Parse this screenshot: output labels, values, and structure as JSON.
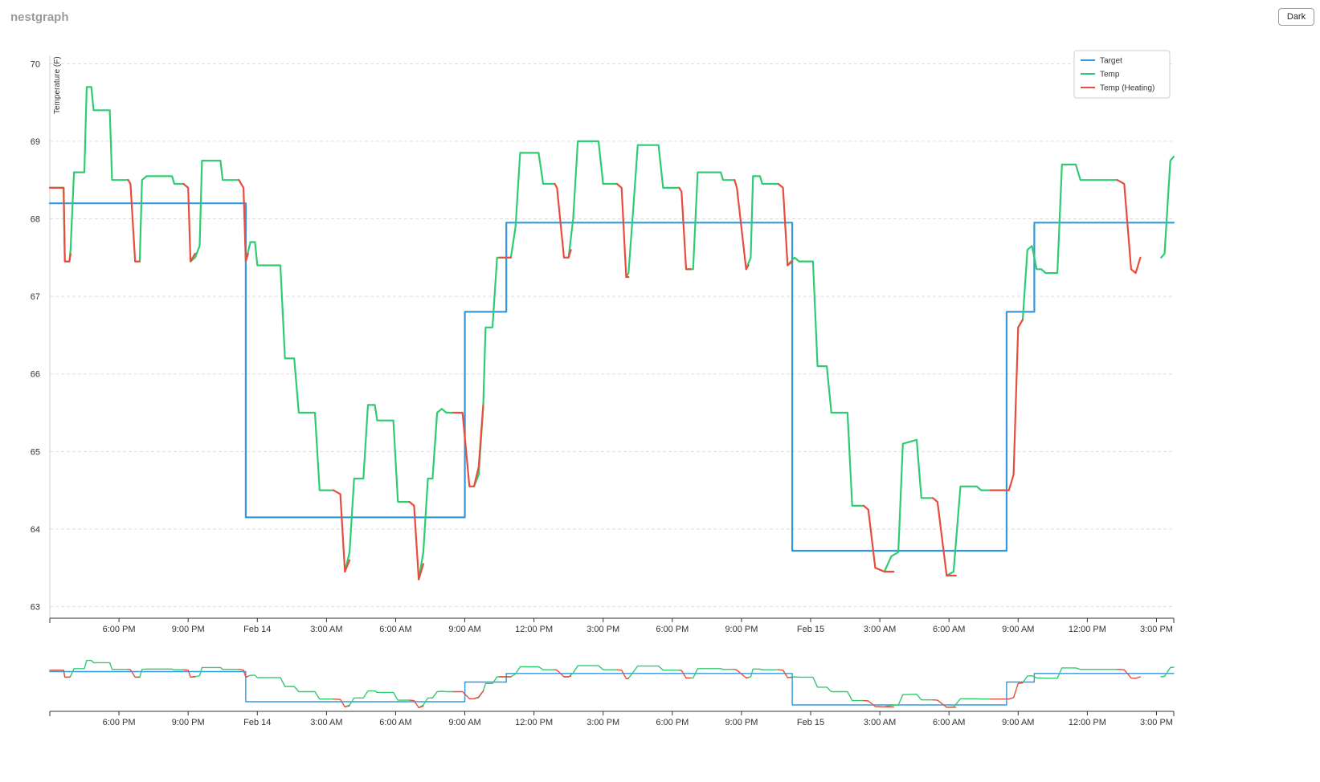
{
  "app": {
    "title": "nestgraph"
  },
  "controls": {
    "theme_button": "Dark"
  },
  "chart_data": [
    {
      "type": "line",
      "ylabel": "Temperature (F)",
      "ylim": [
        62.85,
        70.2
      ],
      "yticks": [
        63,
        64,
        65,
        66,
        67,
        68,
        69,
        70
      ],
      "x_range_hours_from_start": [
        0,
        48.75
      ],
      "xtick_labels": [
        "6:00 PM",
        "9:00 PM",
        "Feb 14",
        "3:00 AM",
        "6:00 AM",
        "9:00 AM",
        "12:00 PM",
        "3:00 PM",
        "6:00 PM",
        "9:00 PM",
        "Feb 15",
        "3:00 AM",
        "6:00 AM",
        "9:00 AM",
        "12:00 PM",
        "3:00 PM"
      ],
      "legend": {
        "position": "top-right",
        "entries": [
          "Target",
          "Temp",
          "Temp (Heating)"
        ]
      },
      "colors": {
        "target": "#3498db",
        "temp": "#2ecc71",
        "heating": "#e74c3c"
      },
      "grid": "horizontal dashed",
      "series": [
        {
          "name": "Target",
          "step": true,
          "points": [
            [
              0,
              68.2
            ],
            [
              8.5,
              68.2
            ],
            [
              8.5,
              64.15
            ],
            [
              18.0,
              64.15
            ],
            [
              18.0,
              66.8
            ],
            [
              19.8,
              66.8
            ],
            [
              19.8,
              67.95
            ],
            [
              32.2,
              67.95
            ],
            [
              32.2,
              63.72
            ],
            [
              41.5,
              63.72
            ],
            [
              41.5,
              66.8
            ],
            [
              42.7,
              66.8
            ],
            [
              42.7,
              67.95
            ],
            [
              48.75,
              67.95
            ]
          ]
        },
        {
          "name": "Temp",
          "segments": [
            [
              [
                0,
                68.4
              ],
              [
                0.6,
                68.4
              ],
              [
                0.65,
                67.45
              ],
              [
                0.85,
                67.45
              ],
              [
                0.9,
                67.6
              ],
              [
                1.05,
                68.6
              ],
              [
                1.5,
                68.6
              ],
              [
                1.6,
                69.7
              ],
              [
                1.8,
                69.7
              ],
              [
                1.9,
                69.4
              ],
              [
                2.6,
                69.4
              ],
              [
                2.7,
                68.5
              ],
              [
                3.4,
                68.5
              ]
            ],
            [
              [
                3.7,
                67.45
              ],
              [
                3.9,
                67.45
              ],
              [
                4.0,
                68.5
              ],
              [
                4.2,
                68.55
              ],
              [
                5.3,
                68.55
              ],
              [
                5.4,
                68.45
              ],
              [
                5.8,
                68.45
              ]
            ],
            [
              [
                6.1,
                67.45
              ],
              [
                6.3,
                67.5
              ],
              [
                6.5,
                67.65
              ],
              [
                6.6,
                68.75
              ],
              [
                7.4,
                68.75
              ],
              [
                7.5,
                68.5
              ],
              [
                8.2,
                68.5
              ]
            ],
            [
              [
                8.5,
                67.45
              ],
              [
                8.7,
                67.7
              ],
              [
                8.9,
                67.7
              ],
              [
                9.0,
                67.4
              ],
              [
                10.0,
                67.4
              ],
              [
                10.2,
                66.2
              ],
              [
                10.6,
                66.2
              ],
              [
                10.8,
                65.5
              ],
              [
                11.5,
                65.5
              ],
              [
                11.7,
                64.5
              ],
              [
                12.3,
                64.5
              ]
            ],
            [
              [
                12.8,
                63.45
              ],
              [
                13.0,
                63.7
              ],
              [
                13.2,
                64.65
              ],
              [
                13.6,
                64.65
              ],
              [
                13.8,
                65.6
              ],
              [
                14.1,
                65.6
              ],
              [
                14.2,
                65.4
              ],
              [
                14.9,
                65.4
              ],
              [
                15.1,
                64.35
              ],
              [
                15.6,
                64.35
              ]
            ],
            [
              [
                16.0,
                63.35
              ],
              [
                16.2,
                63.7
              ],
              [
                16.4,
                64.65
              ],
              [
                16.6,
                64.65
              ],
              [
                16.8,
                65.5
              ],
              [
                17.0,
                65.55
              ],
              [
                17.2,
                65.5
              ],
              [
                17.5,
                65.5
              ]
            ],
            [
              [
                18.4,
                64.55
              ],
              [
                18.6,
                64.7
              ],
              [
                18.8,
                65.6
              ],
              [
                18.9,
                66.6
              ],
              [
                19.2,
                66.6
              ],
              [
                19.4,
                67.5
              ],
              [
                20.0,
                67.5
              ]
            ],
            [
              [
                20.0,
                67.5
              ],
              [
                20.2,
                67.9
              ],
              [
                20.4,
                68.85
              ],
              [
                21.2,
                68.85
              ],
              [
                21.4,
                68.45
              ],
              [
                21.9,
                68.45
              ]
            ],
            [
              [
                22.3,
                67.5
              ],
              [
                22.5,
                67.5
              ],
              [
                22.7,
                68.0
              ],
              [
                22.9,
                69.0
              ],
              [
                23.8,
                69.0
              ],
              [
                24.0,
                68.45
              ],
              [
                24.6,
                68.45
              ]
            ],
            [
              [
                25.0,
                67.25
              ],
              [
                25.1,
                67.3
              ],
              [
                25.3,
                68.1
              ],
              [
                25.5,
                68.95
              ],
              [
                26.4,
                68.95
              ],
              [
                26.6,
                68.4
              ],
              [
                27.3,
                68.4
              ]
            ],
            [
              [
                27.6,
                67.35
              ],
              [
                27.9,
                67.35
              ],
              [
                28.1,
                68.6
              ],
              [
                29.1,
                68.6
              ],
              [
                29.2,
                68.5
              ],
              [
                29.7,
                68.5
              ]
            ],
            [
              [
                30.2,
                67.35
              ],
              [
                30.4,
                67.5
              ],
              [
                30.5,
                68.55
              ],
              [
                30.8,
                68.55
              ],
              [
                30.9,
                68.45
              ],
              [
                31.6,
                68.45
              ]
            ],
            [
              [
                32.0,
                67.4
              ],
              [
                32.3,
                67.5
              ],
              [
                32.5,
                67.45
              ],
              [
                33.1,
                67.45
              ],
              [
                33.3,
                66.1
              ],
              [
                33.7,
                66.1
              ],
              [
                33.9,
                65.5
              ],
              [
                34.6,
                65.5
              ],
              [
                34.8,
                64.3
              ],
              [
                35.3,
                64.3
              ]
            ],
            [
              [
                36.2,
                63.45
              ],
              [
                36.5,
                63.65
              ],
              [
                36.8,
                63.7
              ],
              [
                37.0,
                65.1
              ],
              [
                37.6,
                65.15
              ],
              [
                37.8,
                64.4
              ],
              [
                38.3,
                64.4
              ]
            ],
            [
              [
                38.9,
                63.4
              ],
              [
                39.2,
                63.45
              ],
              [
                39.5,
                64.55
              ],
              [
                40.2,
                64.55
              ],
              [
                40.4,
                64.5
              ],
              [
                40.8,
                64.5
              ]
            ],
            [
              [
                42.0,
                66.6
              ],
              [
                42.2,
                66.7
              ],
              [
                42.4,
                67.6
              ],
              [
                42.6,
                67.65
              ],
              [
                42.8,
                67.35
              ],
              [
                43.0,
                67.35
              ],
              [
                43.2,
                67.3
              ],
              [
                43.7,
                67.3
              ],
              [
                43.9,
                68.7
              ],
              [
                44.5,
                68.7
              ],
              [
                44.7,
                68.5
              ],
              [
                46.3,
                68.5
              ]
            ],
            [
              [
                48.2,
                67.5
              ],
              [
                48.35,
                67.55
              ],
              [
                48.6,
                68.75
              ],
              [
                48.75,
                68.8
              ]
            ]
          ]
        },
        {
          "name": "Temp (Heating)",
          "segments": [
            [
              [
                0,
                68.4
              ],
              [
                0.6,
                68.4
              ],
              [
                0.65,
                67.45
              ],
              [
                0.85,
                67.45
              ],
              [
                0.9,
                67.55
              ]
            ],
            [
              [
                3.4,
                68.5
              ],
              [
                3.5,
                68.45
              ],
              [
                3.7,
                67.45
              ],
              [
                3.9,
                67.45
              ]
            ],
            [
              [
                5.8,
                68.45
              ],
              [
                6.0,
                68.4
              ],
              [
                6.1,
                67.45
              ],
              [
                6.3,
                67.55
              ]
            ],
            [
              [
                8.2,
                68.5
              ],
              [
                8.4,
                68.4
              ],
              [
                8.5,
                67.45
              ],
              [
                8.6,
                67.55
              ]
            ],
            [
              [
                12.3,
                64.5
              ],
              [
                12.6,
                64.45
              ],
              [
                12.8,
                63.45
              ],
              [
                13.0,
                63.6
              ]
            ],
            [
              [
                15.6,
                64.35
              ],
              [
                15.8,
                64.3
              ],
              [
                16.0,
                63.35
              ],
              [
                16.2,
                63.55
              ]
            ],
            [
              [
                17.5,
                65.5
              ],
              [
                17.9,
                65.5
              ],
              [
                18.2,
                64.55
              ],
              [
                18.4,
                64.55
              ],
              [
                18.6,
                64.8
              ],
              [
                18.8,
                65.6
              ]
            ],
            [
              [
                19.5,
                67.5
              ],
              [
                20.0,
                67.5
              ]
            ],
            [
              [
                21.9,
                68.45
              ],
              [
                22.0,
                68.4
              ],
              [
                22.3,
                67.5
              ],
              [
                22.5,
                67.5
              ],
              [
                22.6,
                67.6
              ]
            ],
            [
              [
                24.6,
                68.45
              ],
              [
                24.8,
                68.4
              ],
              [
                25.0,
                67.25
              ],
              [
                25.1,
                67.25
              ]
            ],
            [
              [
                27.3,
                68.4
              ],
              [
                27.4,
                68.35
              ],
              [
                27.6,
                67.35
              ],
              [
                27.8,
                67.35
              ]
            ],
            [
              [
                29.7,
                68.5
              ],
              [
                29.8,
                68.4
              ],
              [
                30.2,
                67.35
              ],
              [
                30.3,
                67.4
              ]
            ],
            [
              [
                31.6,
                68.45
              ],
              [
                31.8,
                68.4
              ],
              [
                32.0,
                67.4
              ],
              [
                32.2,
                67.45
              ]
            ],
            [
              [
                35.3,
                64.3
              ],
              [
                35.5,
                64.25
              ],
              [
                35.8,
                63.5
              ],
              [
                36.2,
                63.45
              ],
              [
                36.6,
                63.45
              ]
            ],
            [
              [
                38.3,
                64.4
              ],
              [
                38.5,
                64.35
              ],
              [
                38.9,
                63.4
              ],
              [
                39.3,
                63.4
              ]
            ],
            [
              [
                40.8,
                64.5
              ],
              [
                41.6,
                64.5
              ],
              [
                41.8,
                64.7
              ],
              [
                42.0,
                66.6
              ],
              [
                42.2,
                66.7
              ]
            ],
            [
              [
                46.3,
                68.5
              ],
              [
                46.6,
                68.45
              ],
              [
                46.9,
                67.35
              ],
              [
                47.1,
                67.3
              ],
              [
                47.3,
                67.5
              ]
            ]
          ]
        }
      ]
    }
  ]
}
